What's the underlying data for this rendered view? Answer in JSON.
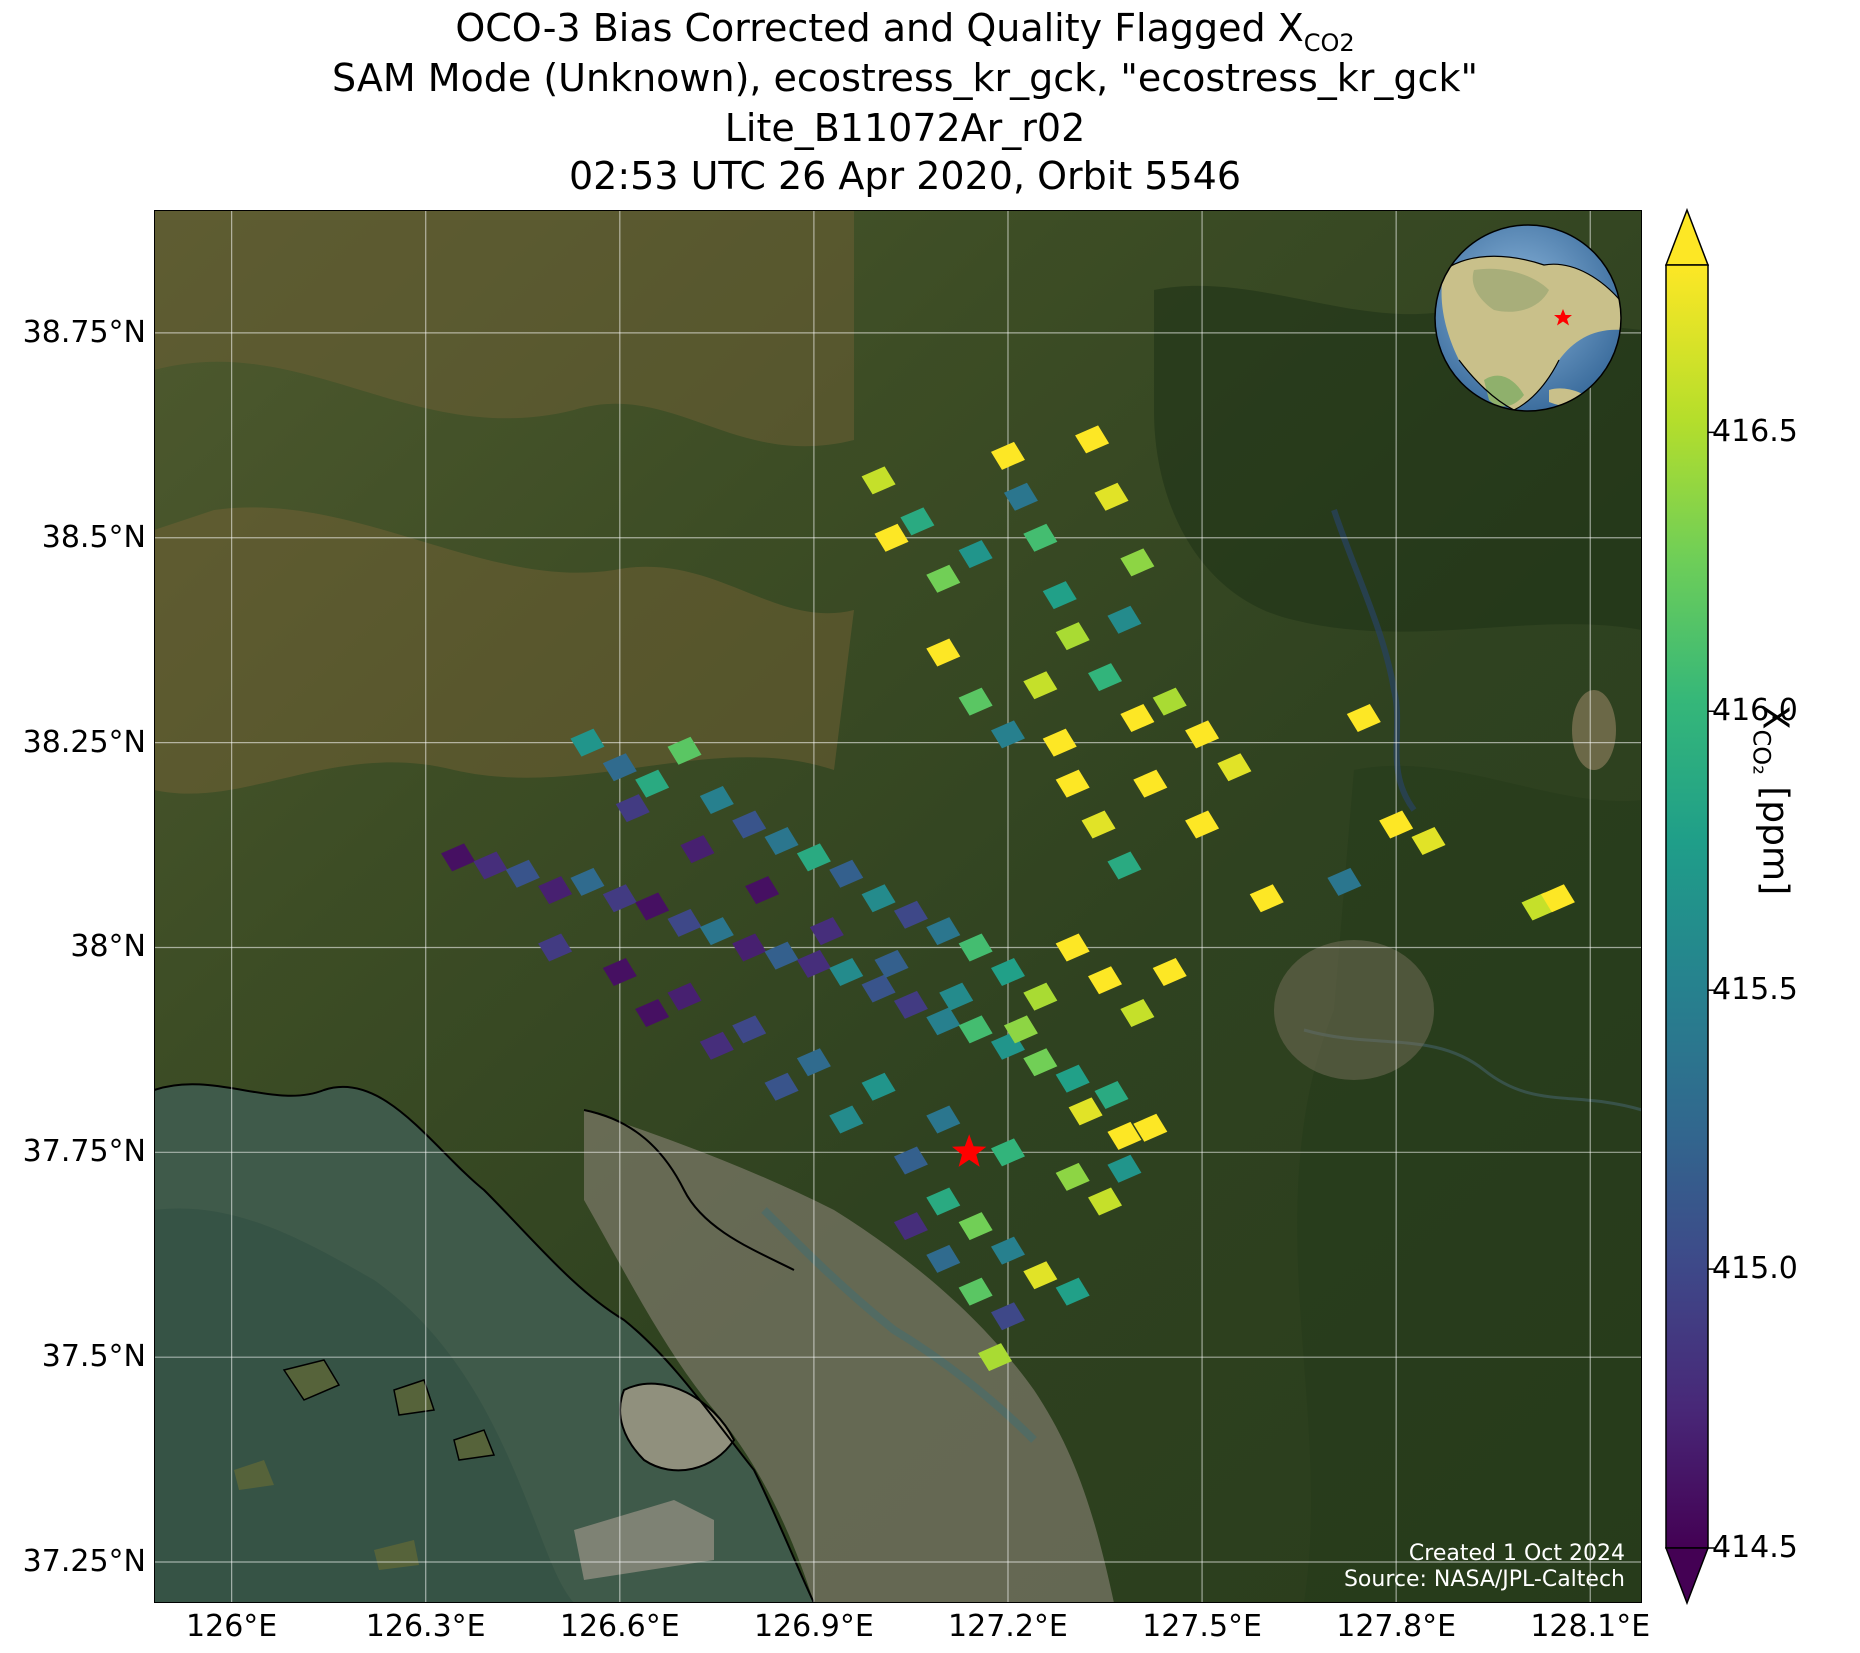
{
  "title": {
    "line1_prefix": "OCO-3 Bias Corrected and Quality Flagged X",
    "line1_sub": "CO2",
    "line2": "SAM Mode (Unknown), ecostress_kr_gck, \"ecostress_kr_gck\"",
    "line3": "Lite_B11072Ar_r02",
    "line4": "02:53 UTC 26 Apr 2020, Orbit 5546"
  },
  "map": {
    "extent": {
      "lon_min": 125.88,
      "lon_max": 128.18,
      "lat_min": 37.2,
      "lat_max": 38.9
    },
    "y_ticks": [
      {
        "value": 38.75,
        "label": "38.75°N"
      },
      {
        "value": 38.5,
        "label": "38.5°N"
      },
      {
        "value": 38.25,
        "label": "38.25°N"
      },
      {
        "value": 38.0,
        "label": "38°N"
      },
      {
        "value": 37.75,
        "label": "37.75°N"
      },
      {
        "value": 37.5,
        "label": "37.5°N"
      },
      {
        "value": 37.25,
        "label": "37.25°N"
      }
    ],
    "x_ticks": [
      {
        "value": 126.0,
        "label": "126°E"
      },
      {
        "value": 126.3,
        "label": "126.3°E"
      },
      {
        "value": 126.6,
        "label": "126.6°E"
      },
      {
        "value": 126.9,
        "label": "126.9°E"
      },
      {
        "value": 127.2,
        "label": "127.2°E"
      },
      {
        "value": 127.5,
        "label": "127.5°E"
      },
      {
        "value": 127.8,
        "label": "127.8°E"
      },
      {
        "value": 128.1,
        "label": "128.1°E"
      }
    ],
    "target": {
      "lon": 127.14,
      "lat": 37.75,
      "marker": "red-star"
    },
    "grid": true,
    "basemap": "satellite imagery",
    "inset": "globe centered on East Asia with red star marking the target"
  },
  "colorbar": {
    "colormap": "viridis",
    "min": 414.5,
    "max": 416.8,
    "ticks": [
      {
        "value": 414.5,
        "label": "414.5"
      },
      {
        "value": 415.0,
        "label": "415.0"
      },
      {
        "value": 415.5,
        "label": "415.5"
      },
      {
        "value": 416.0,
        "label": "416.0"
      },
      {
        "value": 416.5,
        "label": "416.5"
      }
    ],
    "label_prefix": "X",
    "label_sub": "CO₂",
    "label_suffix": " [ppm]",
    "extend": "both"
  },
  "credits": {
    "created": "Created 1 Oct 2024",
    "source": "Source: NASA/JPL-Caltech"
  },
  "colors": {
    "viridis": [
      "#440154",
      "#482878",
      "#3e4989",
      "#31688e",
      "#26828e",
      "#1f9e89",
      "#35b779",
      "#6ece58",
      "#b5de2b",
      "#fde725"
    ],
    "target_star": "#ff0000"
  },
  "chart_data": {
    "type": "scatter",
    "xlabel": "",
    "ylabel": "",
    "xlim": [
      125.88,
      128.18
    ],
    "ylim": [
      37.2,
      38.9
    ],
    "color_label": "XCO2 [ppm]",
    "series": [
      {
        "swath": "south",
        "points": [
          [
            126.35,
            38.11,
            414.6
          ],
          [
            126.4,
            38.1,
            414.8
          ],
          [
            126.45,
            38.09,
            415.1
          ],
          [
            126.5,
            38.07,
            414.7
          ],
          [
            126.55,
            38.08,
            415.3
          ],
          [
            126.6,
            38.06,
            414.9
          ],
          [
            126.65,
            38.05,
            414.6
          ],
          [
            126.7,
            38.03,
            415.0
          ],
          [
            126.75,
            38.02,
            415.4
          ],
          [
            126.8,
            38.0,
            414.7
          ],
          [
            126.85,
            37.99,
            415.2
          ],
          [
            126.9,
            37.98,
            414.8
          ],
          [
            126.95,
            37.97,
            415.6
          ],
          [
            127.0,
            37.95,
            415.1
          ],
          [
            127.05,
            37.93,
            414.9
          ],
          [
            127.1,
            37.91,
            415.5
          ],
          [
            127.15,
            37.9,
            416.1
          ],
          [
            127.2,
            37.88,
            415.7
          ],
          [
            127.25,
            37.86,
            416.3
          ],
          [
            127.3,
            37.84,
            415.8
          ],
          [
            126.5,
            38.0,
            414.9
          ],
          [
            126.6,
            37.97,
            414.6
          ],
          [
            126.7,
            37.94,
            414.7
          ],
          [
            126.8,
            37.9,
            415.0
          ],
          [
            126.9,
            37.86,
            415.3
          ],
          [
            127.0,
            37.83,
            415.7
          ],
          [
            127.1,
            37.79,
            415.4
          ],
          [
            127.2,
            37.75,
            416.0
          ],
          [
            127.3,
            37.72,
            416.4
          ],
          [
            127.35,
            37.69,
            416.6
          ],
          [
            126.65,
            37.92,
            414.6
          ],
          [
            126.75,
            37.88,
            414.8
          ],
          [
            126.85,
            37.83,
            415.1
          ],
          [
            126.95,
            37.79,
            415.6
          ],
          [
            127.05,
            37.74,
            415.2
          ],
          [
            127.1,
            37.69,
            415.9
          ],
          [
            127.15,
            37.66,
            416.3
          ],
          [
            127.2,
            37.63,
            415.5
          ],
          [
            127.25,
            37.6,
            416.7
          ],
          [
            127.3,
            37.58,
            415.8
          ],
          [
            127.05,
            37.66,
            414.8
          ],
          [
            127.1,
            37.62,
            415.3
          ],
          [
            127.15,
            37.58,
            416.2
          ],
          [
            127.2,
            37.55,
            415.0
          ],
          [
            127.18,
            37.5,
            416.5
          ],
          [
            126.55,
            38.25,
            415.7
          ],
          [
            126.6,
            38.22,
            415.3
          ],
          [
            126.65,
            38.2,
            415.9
          ],
          [
            126.7,
            38.24,
            416.2
          ],
          [
            126.75,
            38.18,
            415.5
          ],
          [
            126.8,
            38.15,
            415.1
          ],
          [
            126.85,
            38.13,
            415.4
          ],
          [
            126.9,
            38.11,
            415.9
          ],
          [
            126.95,
            38.09,
            415.2
          ],
          [
            127.0,
            38.06,
            415.6
          ],
          [
            127.05,
            38.04,
            415.0
          ],
          [
            127.1,
            38.02,
            415.4
          ],
          [
            127.15,
            38.0,
            416.1
          ],
          [
            127.2,
            37.97,
            415.8
          ],
          [
            127.25,
            37.94,
            416.5
          ],
          [
            126.62,
            38.17,
            414.9
          ],
          [
            126.72,
            38.12,
            414.7
          ],
          [
            126.82,
            38.07,
            414.6
          ],
          [
            126.92,
            38.02,
            414.8
          ],
          [
            127.02,
            37.98,
            415.2
          ],
          [
            127.12,
            37.94,
            415.6
          ],
          [
            127.22,
            37.9,
            416.4
          ],
          [
            127.32,
            37.8,
            416.7
          ],
          [
            127.38,
            37.77,
            416.8
          ],
          [
            127.36,
            37.82,
            415.9
          ]
        ]
      },
      {
        "swath": "north",
        "points": [
          [
            127.0,
            38.57,
            416.6
          ],
          [
            127.02,
            38.5,
            416.8
          ],
          [
            127.06,
            38.52,
            415.9
          ],
          [
            127.1,
            38.45,
            416.3
          ],
          [
            127.15,
            38.48,
            415.7
          ],
          [
            127.2,
            38.6,
            416.8
          ],
          [
            127.22,
            38.55,
            415.4
          ],
          [
            127.25,
            38.5,
            416.1
          ],
          [
            127.28,
            38.43,
            415.8
          ],
          [
            127.3,
            38.38,
            416.5
          ],
          [
            127.33,
            38.62,
            416.8
          ],
          [
            127.36,
            38.55,
            416.7
          ],
          [
            127.4,
            38.47,
            416.4
          ],
          [
            127.38,
            38.4,
            415.6
          ],
          [
            127.35,
            38.33,
            416.0
          ],
          [
            127.1,
            38.36,
            416.8
          ],
          [
            127.15,
            38.3,
            416.2
          ],
          [
            127.2,
            38.26,
            415.5
          ],
          [
            127.25,
            38.32,
            416.6
          ],
          [
            127.28,
            38.25,
            416.8
          ],
          [
            127.3,
            38.2,
            416.8
          ],
          [
            127.34,
            38.15,
            416.7
          ],
          [
            127.38,
            38.1,
            415.9
          ],
          [
            127.4,
            38.28,
            416.8
          ],
          [
            127.45,
            38.3,
            416.5
          ],
          [
            127.5,
            38.26,
            416.8
          ],
          [
            127.55,
            38.22,
            416.7
          ],
          [
            127.42,
            38.2,
            416.8
          ],
          [
            127.5,
            38.15,
            416.8
          ],
          [
            127.3,
            38.0,
            416.8
          ],
          [
            127.35,
            37.96,
            416.8
          ],
          [
            127.4,
            37.92,
            416.6
          ],
          [
            127.45,
            37.97,
            416.8
          ],
          [
            127.42,
            37.78,
            416.8
          ],
          [
            127.38,
            37.73,
            415.7
          ],
          [
            127.75,
            38.28,
            416.8
          ],
          [
            127.8,
            38.15,
            416.8
          ],
          [
            127.85,
            38.13,
            416.7
          ],
          [
            127.72,
            38.08,
            415.4
          ],
          [
            127.6,
            38.06,
            416.8
          ],
          [
            128.02,
            38.05,
            416.6
          ],
          [
            128.05,
            38.06,
            416.8
          ]
        ]
      }
    ]
  }
}
